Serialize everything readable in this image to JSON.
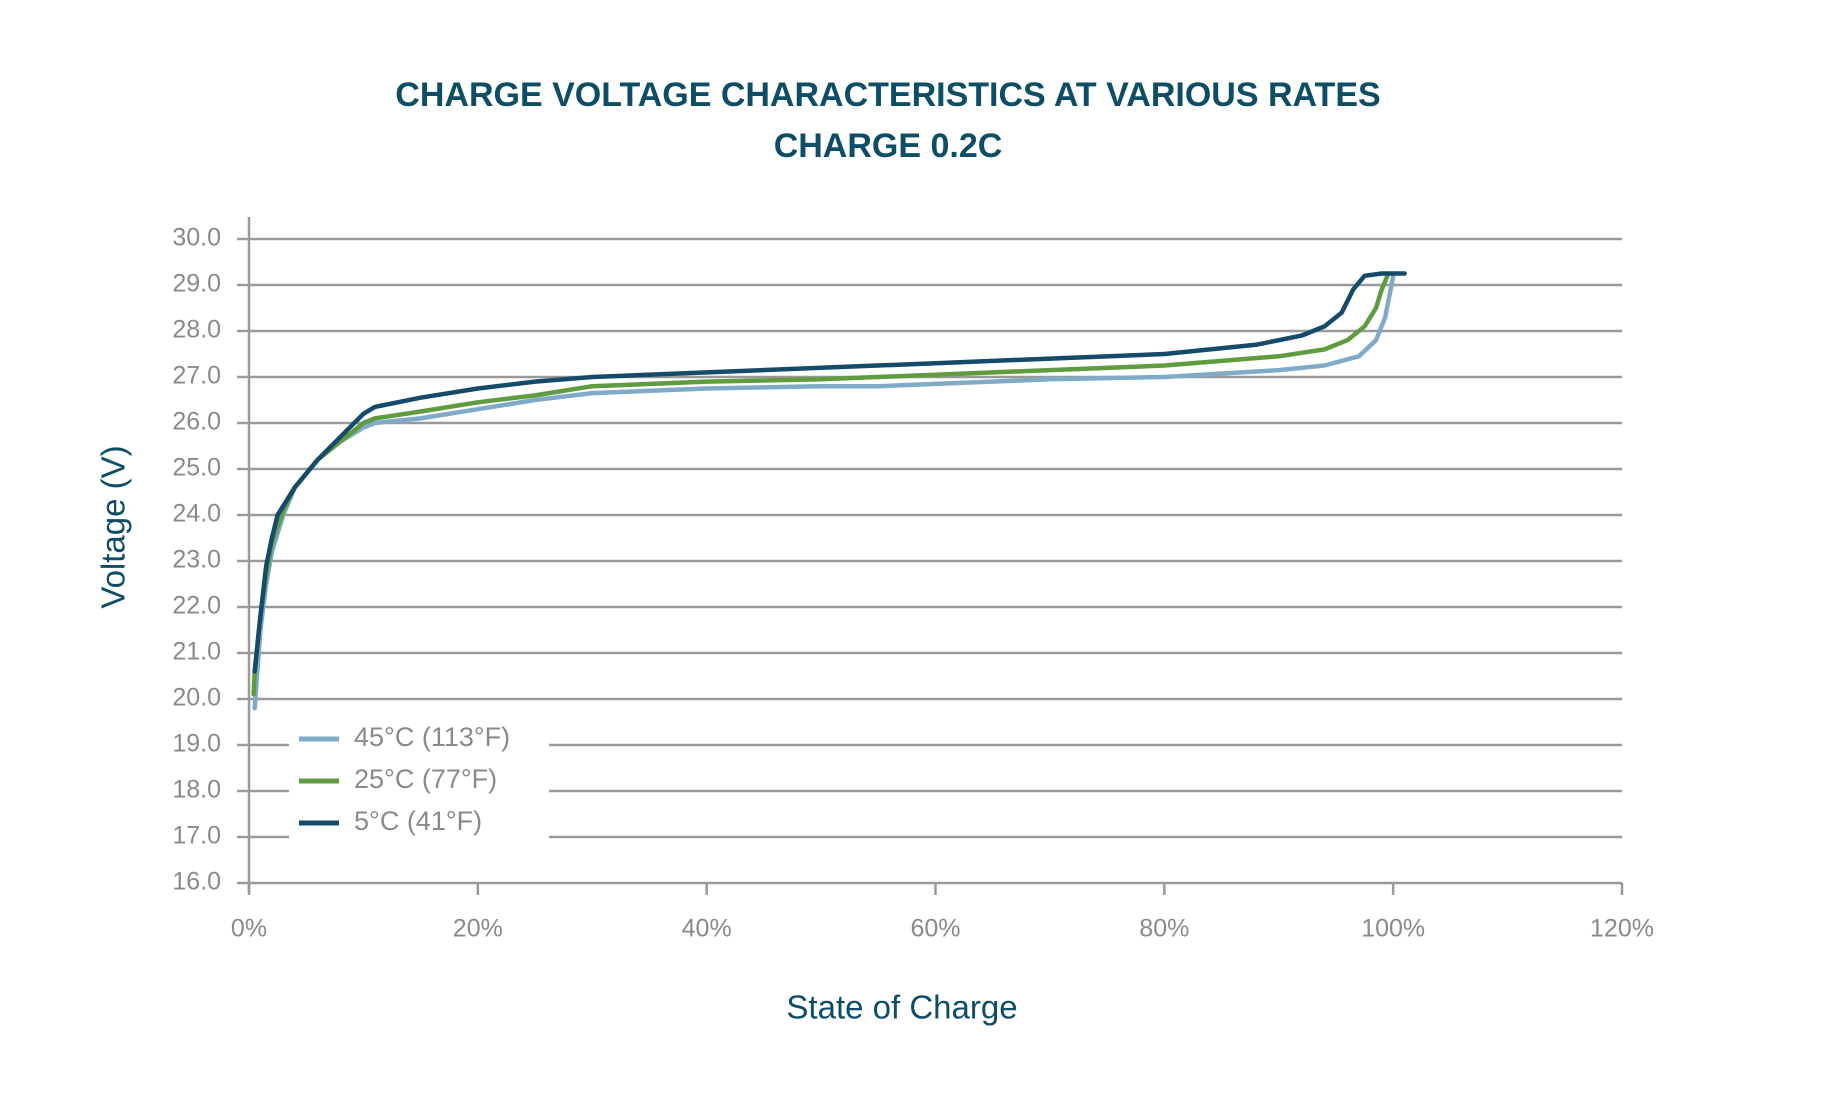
{
  "chart_data": {
    "type": "line",
    "title": "CHARGE VOLTAGE CHARACTERISTICS AT VARIOUS RATES",
    "subtitle": "CHARGE 0.2C",
    "x_label": "State of Charge",
    "y_label": "Voltage (V)",
    "xlim": [
      0,
      120
    ],
    "xticks": [
      {
        "value": 0,
        "label": "0%"
      },
      {
        "value": 20,
        "label": "20%"
      },
      {
        "value": 40,
        "label": "40%"
      },
      {
        "value": 60,
        "label": "60%"
      },
      {
        "value": 80,
        "label": "80%"
      },
      {
        "value": 100,
        "label": "100%"
      },
      {
        "value": 120,
        "label": "120%"
      }
    ],
    "ylim": [
      16,
      30
    ],
    "yticks": [
      {
        "value": 16,
        "label": "16.0"
      },
      {
        "value": 17,
        "label": "17.0"
      },
      {
        "value": 18,
        "label": "18.0"
      },
      {
        "value": 19,
        "label": "19.0"
      },
      {
        "value": 20,
        "label": "20.0"
      },
      {
        "value": 21,
        "label": "21.0"
      },
      {
        "value": 22,
        "label": "22.0"
      },
      {
        "value": 23,
        "label": "23.0"
      },
      {
        "value": 24,
        "label": "24.0"
      },
      {
        "value": 25,
        "label": "25.0"
      },
      {
        "value": 26,
        "label": "26.0"
      },
      {
        "value": 27,
        "label": "27.0"
      },
      {
        "value": 28,
        "label": "28.0"
      },
      {
        "value": 29,
        "label": "29.0"
      },
      {
        "value": 30,
        "label": "30.0"
      }
    ],
    "grid": true,
    "legend": "lower left",
    "series": [
      {
        "name": "45°C (113°F)",
        "color": "#7fabc9",
        "x": [
          0.5,
          0.7,
          1,
          1.5,
          2,
          3,
          4,
          6,
          8,
          10,
          11,
          15,
          20,
          25,
          30,
          40,
          50,
          55,
          60,
          70,
          80,
          90,
          94,
          97,
          98.5,
          99.3,
          99.7,
          100
        ],
        "values": [
          19.8,
          20.5,
          21.5,
          22.5,
          23.2,
          24,
          24.6,
          25.2,
          25.6,
          25.9,
          26.0,
          26.1,
          26.3,
          26.5,
          26.65,
          26.75,
          26.8,
          26.8,
          26.85,
          26.95,
          27.0,
          27.15,
          27.25,
          27.45,
          27.8,
          28.3,
          28.8,
          29.2
        ]
      },
      {
        "name": "25°C (77°F)",
        "color": "#5e9c3f",
        "x": [
          0.4,
          0.5,
          1,
          1.5,
          2,
          3,
          4,
          6,
          8,
          10,
          11,
          15,
          20,
          25,
          30,
          40,
          50,
          60,
          70,
          80,
          90,
          94,
          96,
          97.5,
          98.5,
          99,
          99.5
        ],
        "values": [
          20.1,
          20.6,
          21.8,
          22.7,
          23.4,
          24.1,
          24.6,
          25.2,
          25.6,
          26.0,
          26.1,
          26.25,
          26.45,
          26.6,
          26.8,
          26.9,
          26.95,
          27.05,
          27.15,
          27.25,
          27.45,
          27.6,
          27.8,
          28.1,
          28.5,
          28.9,
          29.2
        ]
      },
      {
        "name": "5°C (41°F)",
        "color": "#164a6b",
        "x": [
          0.5,
          1,
          1.5,
          2,
          2.5,
          4,
          6,
          8,
          10,
          11,
          15,
          20,
          25,
          30,
          40,
          50,
          60,
          70,
          80,
          88,
          92,
          94,
          95.5,
          96.5,
          97.5,
          99,
          101
        ],
        "values": [
          20.6,
          21.8,
          22.9,
          23.5,
          24,
          24.6,
          25.2,
          25.7,
          26.2,
          26.35,
          26.55,
          26.75,
          26.9,
          27.0,
          27.1,
          27.2,
          27.3,
          27.4,
          27.5,
          27.7,
          27.9,
          28.1,
          28.4,
          28.9,
          29.2,
          29.25,
          29.25
        ]
      }
    ]
  }
}
